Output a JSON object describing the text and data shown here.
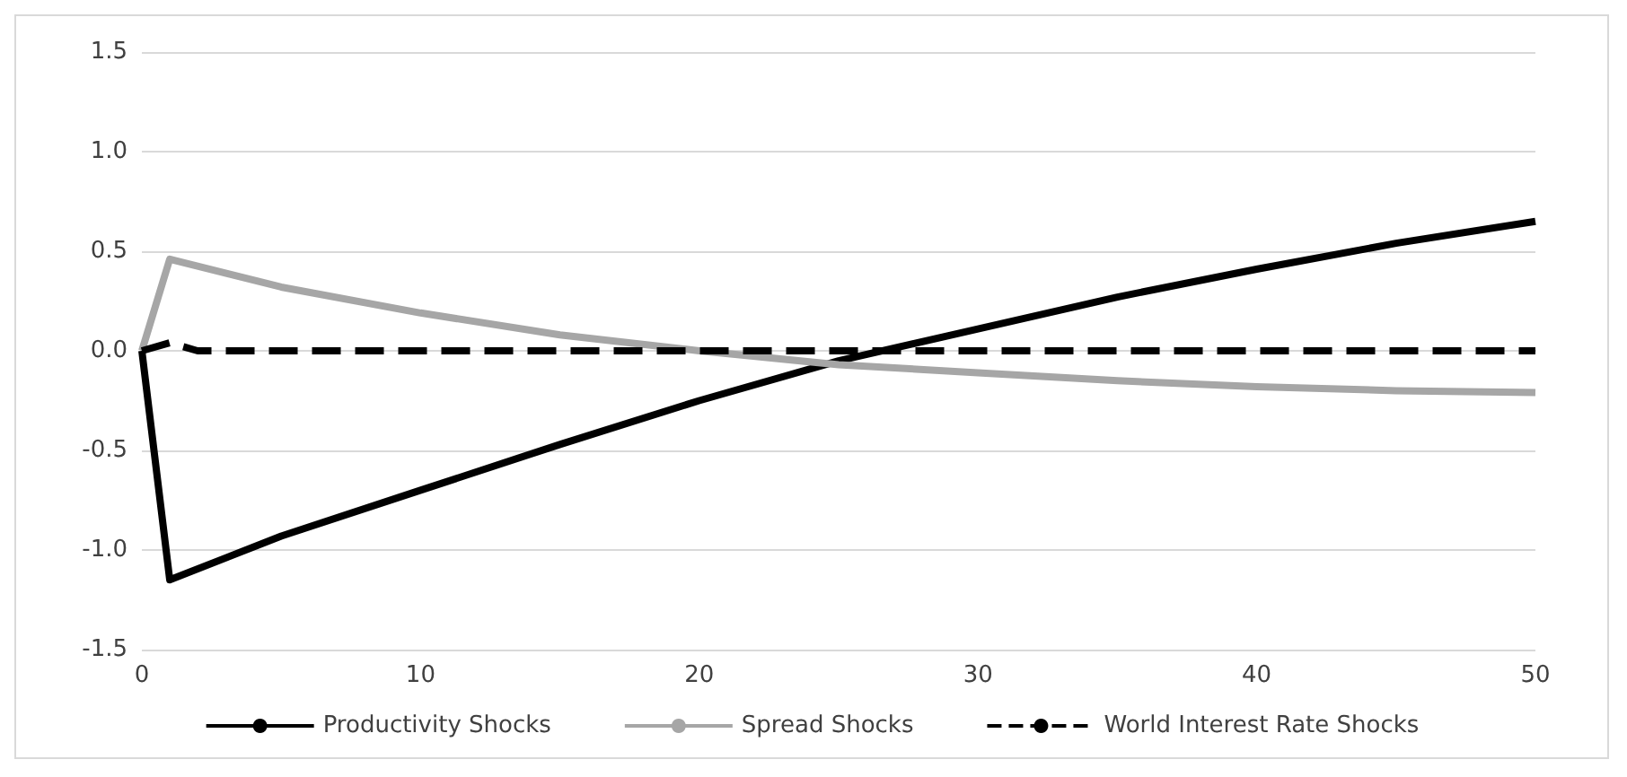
{
  "chart_data": {
    "type": "line",
    "xlim": [
      0,
      50
    ],
    "xticks": [
      0,
      10,
      20,
      30,
      40,
      50
    ],
    "ylim": [
      -1.5,
      1.5
    ],
    "yticks": [
      {
        "value": -1.5,
        "label": "-1.5"
      },
      {
        "value": -1,
        "label": "-1.0"
      },
      {
        "value": -0.5,
        "label": "-0.5"
      },
      {
        "value": 0,
        "label": "0.0"
      },
      {
        "value": 0.5,
        "label": "0.5"
      },
      {
        "value": 1,
        "label": "1.0"
      },
      {
        "value": 1.5,
        "label": "1.5"
      }
    ],
    "grid": "y",
    "legend": "bottom",
    "marker": "none",
    "series": [
      {
        "name": "Productivity Shocks",
        "color": "#000000",
        "line_style": "solid",
        "x": [
          0,
          1,
          5,
          10,
          15,
          20,
          25,
          30,
          35,
          40,
          45,
          50
        ],
        "values": [
          0,
          -1.15,
          -0.93,
          -0.7,
          -0.47,
          -0.25,
          -0.05,
          0.11,
          0.27,
          0.41,
          0.54,
          0.65
        ]
      },
      {
        "name": "Spread Shocks",
        "color": "#a6a6a6",
        "line_style": "solid",
        "x": [
          0,
          1,
          5,
          10,
          15,
          20,
          25,
          30,
          35,
          40,
          45,
          50
        ],
        "values": [
          0,
          0.46,
          0.32,
          0.19,
          0.08,
          0,
          -0.07,
          -0.11,
          -0.15,
          -0.18,
          -0.2,
          -0.21
        ]
      },
      {
        "name": "World Interest Rate Shocks",
        "color": "#000000",
        "line_style": "dashed",
        "x": [
          0,
          1,
          2,
          10,
          20,
          30,
          40,
          50
        ],
        "values": [
          0,
          0.04,
          0,
          0,
          0,
          0,
          0,
          0
        ]
      }
    ]
  }
}
